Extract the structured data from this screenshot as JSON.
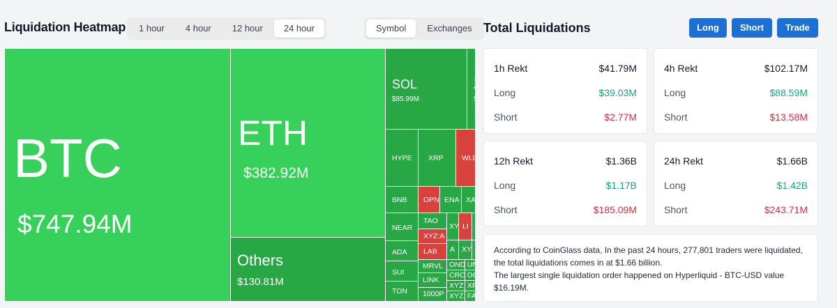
{
  "heatmap": {
    "title": "Liquidation Heatmap",
    "time_tabs": [
      "1 hour",
      "4 hour",
      "12 hour",
      "24 hour"
    ],
    "active_time_tab": "24 hour",
    "group_tabs": [
      "Symbol",
      "Exchanges"
    ],
    "active_group_tab": "Symbol",
    "tiles": {
      "btc": {
        "symbol": "BTC",
        "value": "$747.94M"
      },
      "eth": {
        "symbol": "ETH",
        "value": "$382.92M"
      },
      "others": {
        "symbol": "Others",
        "value": "$130.81M"
      },
      "sol": {
        "symbol": "SOL",
        "value": "$85.99M"
      },
      "z": {
        "symbol": "Z",
        "value": "$"
      },
      "hype": "HYPE",
      "xrp": "XRP",
      "wld": "WLD",
      "bnb": "BNB",
      "opn": "OPN",
      "ena": "ENA",
      "xa": "XA",
      "near": "NEAR",
      "tao": "TAO",
      "xy1": "XY",
      "li": "LI",
      "xyza": "XYZ:A",
      "ada": "ADA",
      "lab": "LAB",
      "a": "A",
      "xy2": "XY",
      "sui": "SUI",
      "mrvl": "MRVL",
      "ond": "OND",
      "un": "UN",
      "crc": "CRC",
      "do": "DO",
      "link": "LINK",
      "xyz1": "XYZ",
      "xp": "XP",
      "ton": "TON",
      "k1000p": "1000P",
      "xyz2": "XYZ",
      "fa": "FA"
    }
  },
  "total": {
    "title": "Total Liquidations",
    "buttons": {
      "long": "Long",
      "short": "Short",
      "trade": "Trade"
    },
    "cards": [
      {
        "title": "1h Rekt",
        "total": "$41.79M",
        "long_label": "Long",
        "long": "$39.03M",
        "short_label": "Short",
        "short": "$2.77M"
      },
      {
        "title": "4h Rekt",
        "total": "$102.17M",
        "long_label": "Long",
        "long": "$88.59M",
        "short_label": "Short",
        "short": "$13.58M"
      },
      {
        "title": "12h Rekt",
        "total": "$1.36B",
        "long_label": "Long",
        "long": "$1.17B",
        "short_label": "Short",
        "short": "$185.09M"
      },
      {
        "title": "24h Rekt",
        "total": "$1.66B",
        "long_label": "Long",
        "long": "$1.42B",
        "short_label": "Short",
        "short": "$243.71M"
      }
    ],
    "info": {
      "line1": "According to CoinGlass data, In the past 24 hours, 277,801 traders were liquidated, the total liquidations comes in at $1.66 billion.",
      "line2": "The largest single liquidation order happened on Hyperliquid - BTC-USD value $16.19M."
    }
  },
  "colors": {
    "accent": "#1d6fd1",
    "long": "#16a37f",
    "short": "#dc2a3d",
    "tile_green": "#37d05b",
    "tile_red": "#d9413c"
  }
}
